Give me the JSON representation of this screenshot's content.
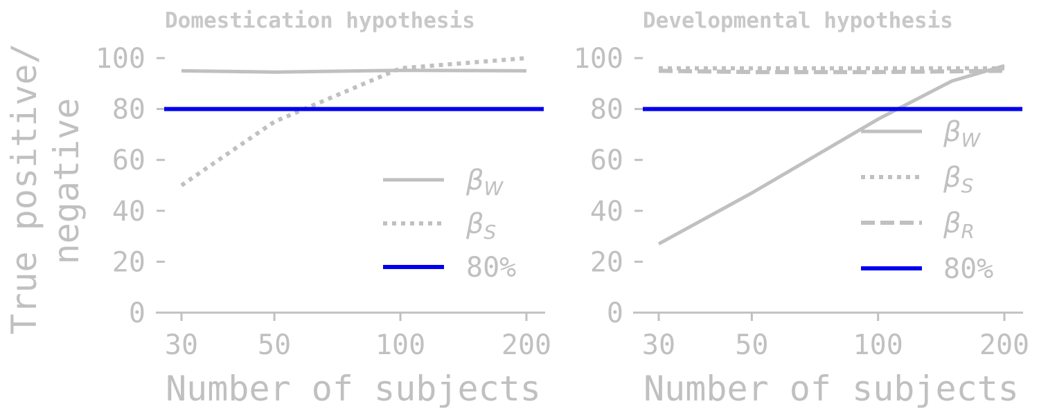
{
  "chart_data": {
    "type": "line",
    "shared_ylabel": "True positive/ negative",
    "shared_ylabel_lines": [
      "True positive/",
      "negative"
    ],
    "colors": {
      "series": "#c0c0c0",
      "threshold": "#0000ee",
      "axis": "#c0c0c0"
    },
    "panels": [
      {
        "title": "Domestication hypothesis",
        "xlabel": "Number of subjects",
        "x_scale": "log",
        "x_ticks": [
          30,
          50,
          100,
          200
        ],
        "x_tick_labels": [
          "30",
          "50",
          "100",
          "200"
        ],
        "y_ticks": [
          0,
          20,
          40,
          60,
          80,
          100
        ],
        "y_tick_labels": [
          "0",
          "20",
          "40",
          "60",
          "80",
          "100"
        ],
        "ylim": [
          0,
          100
        ],
        "legend_placement": "lower-right",
        "series": [
          {
            "name": "β_W",
            "name_base": "β",
            "name_sub": "W",
            "style": "solid",
            "x": [
              30,
              50,
              100,
              200
            ],
            "values": [
              95,
              94.5,
              95.2,
              95
            ]
          },
          {
            "name": "β_S",
            "name_base": "β",
            "name_sub": "S",
            "style": "dotted",
            "x": [
              30,
              50,
              100,
              200
            ],
            "values": [
              50,
              75,
              96,
              100
            ]
          },
          {
            "name": "80%",
            "style": "threshold",
            "x": [
              30,
              200
            ],
            "values": [
              80,
              80
            ]
          }
        ]
      },
      {
        "title": "Developmental hypothesis",
        "xlabel": "Number of subjects",
        "x_scale": "log",
        "x_ticks": [
          30,
          50,
          100,
          200
        ],
        "x_tick_labels": [
          "30",
          "50",
          "100",
          "200"
        ],
        "y_ticks": [
          0,
          20,
          40,
          60,
          80,
          100
        ],
        "y_tick_labels": [
          "0",
          "20",
          "40",
          "60",
          "80",
          "100"
        ],
        "ylim": [
          0,
          100
        ],
        "legend_placement": "center-right",
        "series": [
          {
            "name": "β_W",
            "name_base": "β",
            "name_sub": "W",
            "style": "solid",
            "x": [
              30,
              50,
              100,
              150,
              200
            ],
            "values": [
              27,
              47,
              76,
              91,
              97
            ]
          },
          {
            "name": "β_S",
            "name_base": "β",
            "name_sub": "S",
            "style": "dotted",
            "x": [
              30,
              50,
              100,
              200
            ],
            "values": [
              96,
              96,
              96,
              96
            ]
          },
          {
            "name": "β_R",
            "name_base": "β",
            "name_sub": "R",
            "style": "dashed",
            "x": [
              30,
              50,
              100,
              200
            ],
            "values": [
              95,
              94.5,
              94.5,
              95
            ]
          },
          {
            "name": "80%",
            "style": "threshold",
            "x": [
              30,
              200
            ],
            "values": [
              80,
              80
            ]
          }
        ]
      }
    ]
  }
}
